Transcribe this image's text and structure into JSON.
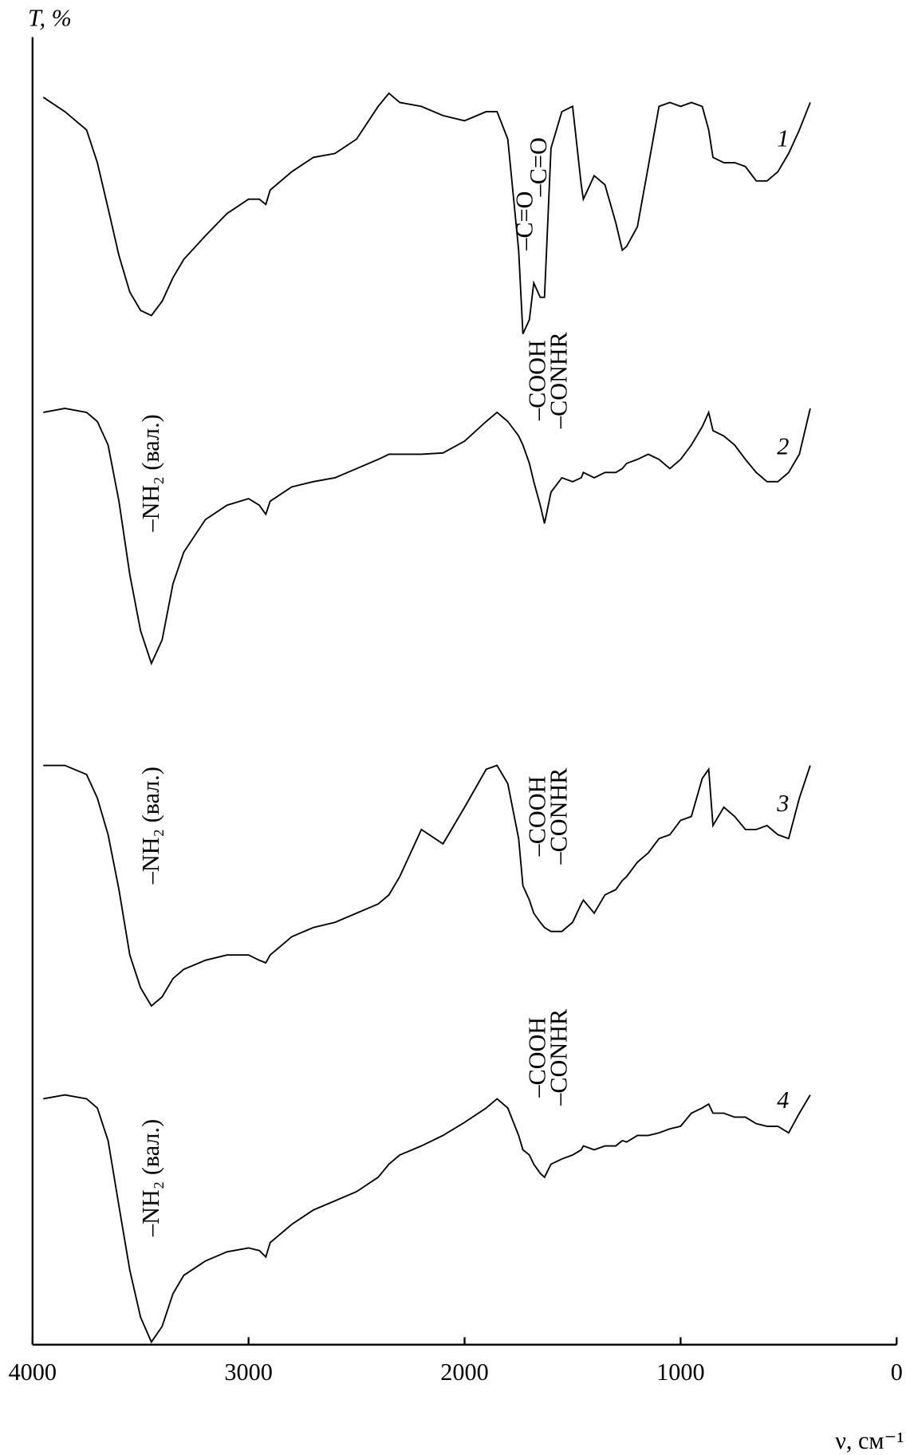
{
  "chart_data": {
    "type": "line",
    "ylabel": "T, %",
    "xlabel": "ν, см⁻¹",
    "xlim": [
      4000,
      0
    ],
    "xticks": [
      4000,
      3000,
      2000,
      1000,
      0
    ],
    "ylim": [
      0,
      100
    ],
    "x": [
      3950,
      3850,
      3750,
      3700,
      3650,
      3600,
      3550,
      3500,
      3450,
      3400,
      3350,
      3300,
      3200,
      3100,
      3000,
      2950,
      2920,
      2900,
      2800,
      2700,
      2600,
      2500,
      2400,
      2350,
      2300,
      2200,
      2100,
      2000,
      1900,
      1850,
      1800,
      1750,
      1730,
      1700,
      1680,
      1650,
      1630,
      1600,
      1550,
      1500,
      1460,
      1450,
      1400,
      1350,
      1300,
      1270,
      1250,
      1200,
      1150,
      1100,
      1050,
      1000,
      950,
      900,
      870,
      850,
      800,
      750,
      700,
      650,
      600,
      550,
      500,
      450,
      400
    ],
    "series": [
      {
        "name": "1",
        "color": "#000000",
        "annotations": [
          "–C=O",
          "–C=O"
        ],
        "values": [
          95.4,
          94.3,
          92.9,
          90.4,
          86.9,
          83.3,
          80.5,
          79.1,
          78.7,
          79.8,
          81.6,
          83.0,
          84.8,
          86.5,
          87.6,
          87.6,
          87.2,
          88.3,
          89.7,
          90.8,
          91.1,
          92.2,
          94.7,
          95.7,
          95.0,
          94.7,
          94.0,
          93.6,
          94.3,
          94.3,
          92.2,
          83.7,
          77.3,
          78.4,
          81.2,
          80.1,
          80.1,
          91.5,
          94.3,
          94.7,
          88.7,
          87.6,
          89.4,
          88.7,
          85.8,
          83.7,
          84.0,
          85.5,
          90.1,
          94.7,
          95.0,
          94.7,
          95.0,
          94.7,
          92.9,
          90.8,
          90.4,
          90.4,
          90.1,
          89.0,
          89.0,
          89.7,
          91.1,
          92.9,
          95.0
        ]
      },
      {
        "name": "2",
        "color": "#000000",
        "annotations": [
          "–COOH",
          "–CONHR",
          "–NH₂ (вал.)"
        ],
        "values": [
          71.3,
          71.6,
          71.3,
          70.6,
          68.8,
          64.5,
          58.9,
          54.6,
          52.1,
          53.9,
          58.2,
          60.6,
          63.1,
          64.2,
          64.7,
          64.2,
          63.5,
          64.5,
          65.6,
          66.0,
          66.3,
          67.0,
          67.7,
          68.1,
          68.1,
          68.1,
          68.2,
          69.1,
          70.6,
          71.3,
          70.6,
          69.5,
          68.8,
          67.4,
          66.0,
          64.2,
          62.8,
          65.2,
          66.3,
          66.0,
          66.3,
          66.7,
          66.3,
          66.7,
          66.7,
          67.0,
          67.4,
          67.7,
          68.1,
          67.7,
          67.0,
          67.7,
          68.8,
          70.2,
          71.3,
          69.9,
          69.5,
          68.8,
          67.7,
          66.7,
          66.0,
          66.0,
          66.7,
          68.1,
          71.6
        ]
      },
      {
        "name": "3",
        "color": "#000000",
        "annotations": [
          "–COOH",
          "–CONHR",
          "–NH₂ (вал.)"
        ],
        "values": [
          44.3,
          44.3,
          43.6,
          41.8,
          39.0,
          34.8,
          29.8,
          27.3,
          25.9,
          26.6,
          28.0,
          28.7,
          29.4,
          29.8,
          29.8,
          29.4,
          29.2,
          29.8,
          31.2,
          31.9,
          32.3,
          33.0,
          33.7,
          34.4,
          35.8,
          39.4,
          38.3,
          41.1,
          44.0,
          44.3,
          42.9,
          38.7,
          35.1,
          34.0,
          33.0,
          32.3,
          31.9,
          31.6,
          31.6,
          32.3,
          33.7,
          34.0,
          33.0,
          34.4,
          34.8,
          35.5,
          35.8,
          36.9,
          37.6,
          38.7,
          39.0,
          40.1,
          40.4,
          43.3,
          44.0,
          39.7,
          41.1,
          40.4,
          39.4,
          39.4,
          39.7,
          39.0,
          38.7,
          41.8,
          44.3
        ]
      },
      {
        "name": "4",
        "color": "#000000",
        "annotations": [
          "–COOH",
          "–CONHR",
          "–NH₂ (вал.)"
        ],
        "values": [
          18.8,
          19.1,
          18.8,
          18.1,
          15.6,
          10.6,
          5.7,
          2.1,
          0.2,
          1.4,
          3.9,
          5.3,
          6.4,
          7.1,
          7.4,
          7.2,
          6.7,
          7.8,
          9.2,
          10.3,
          11.0,
          11.7,
          12.8,
          13.8,
          14.5,
          15.2,
          16.0,
          17.0,
          18.1,
          18.8,
          18.1,
          16.0,
          14.9,
          14.5,
          13.8,
          13.1,
          12.8,
          13.8,
          14.2,
          14.5,
          14.9,
          15.2,
          14.9,
          15.2,
          15.2,
          15.6,
          15.5,
          16.0,
          16.0,
          16.2,
          16.5,
          16.7,
          17.7,
          18.1,
          18.4,
          17.7,
          17.7,
          17.4,
          17.4,
          16.9,
          16.7,
          16.7,
          16.2,
          17.7,
          19.1
        ]
      }
    ]
  }
}
